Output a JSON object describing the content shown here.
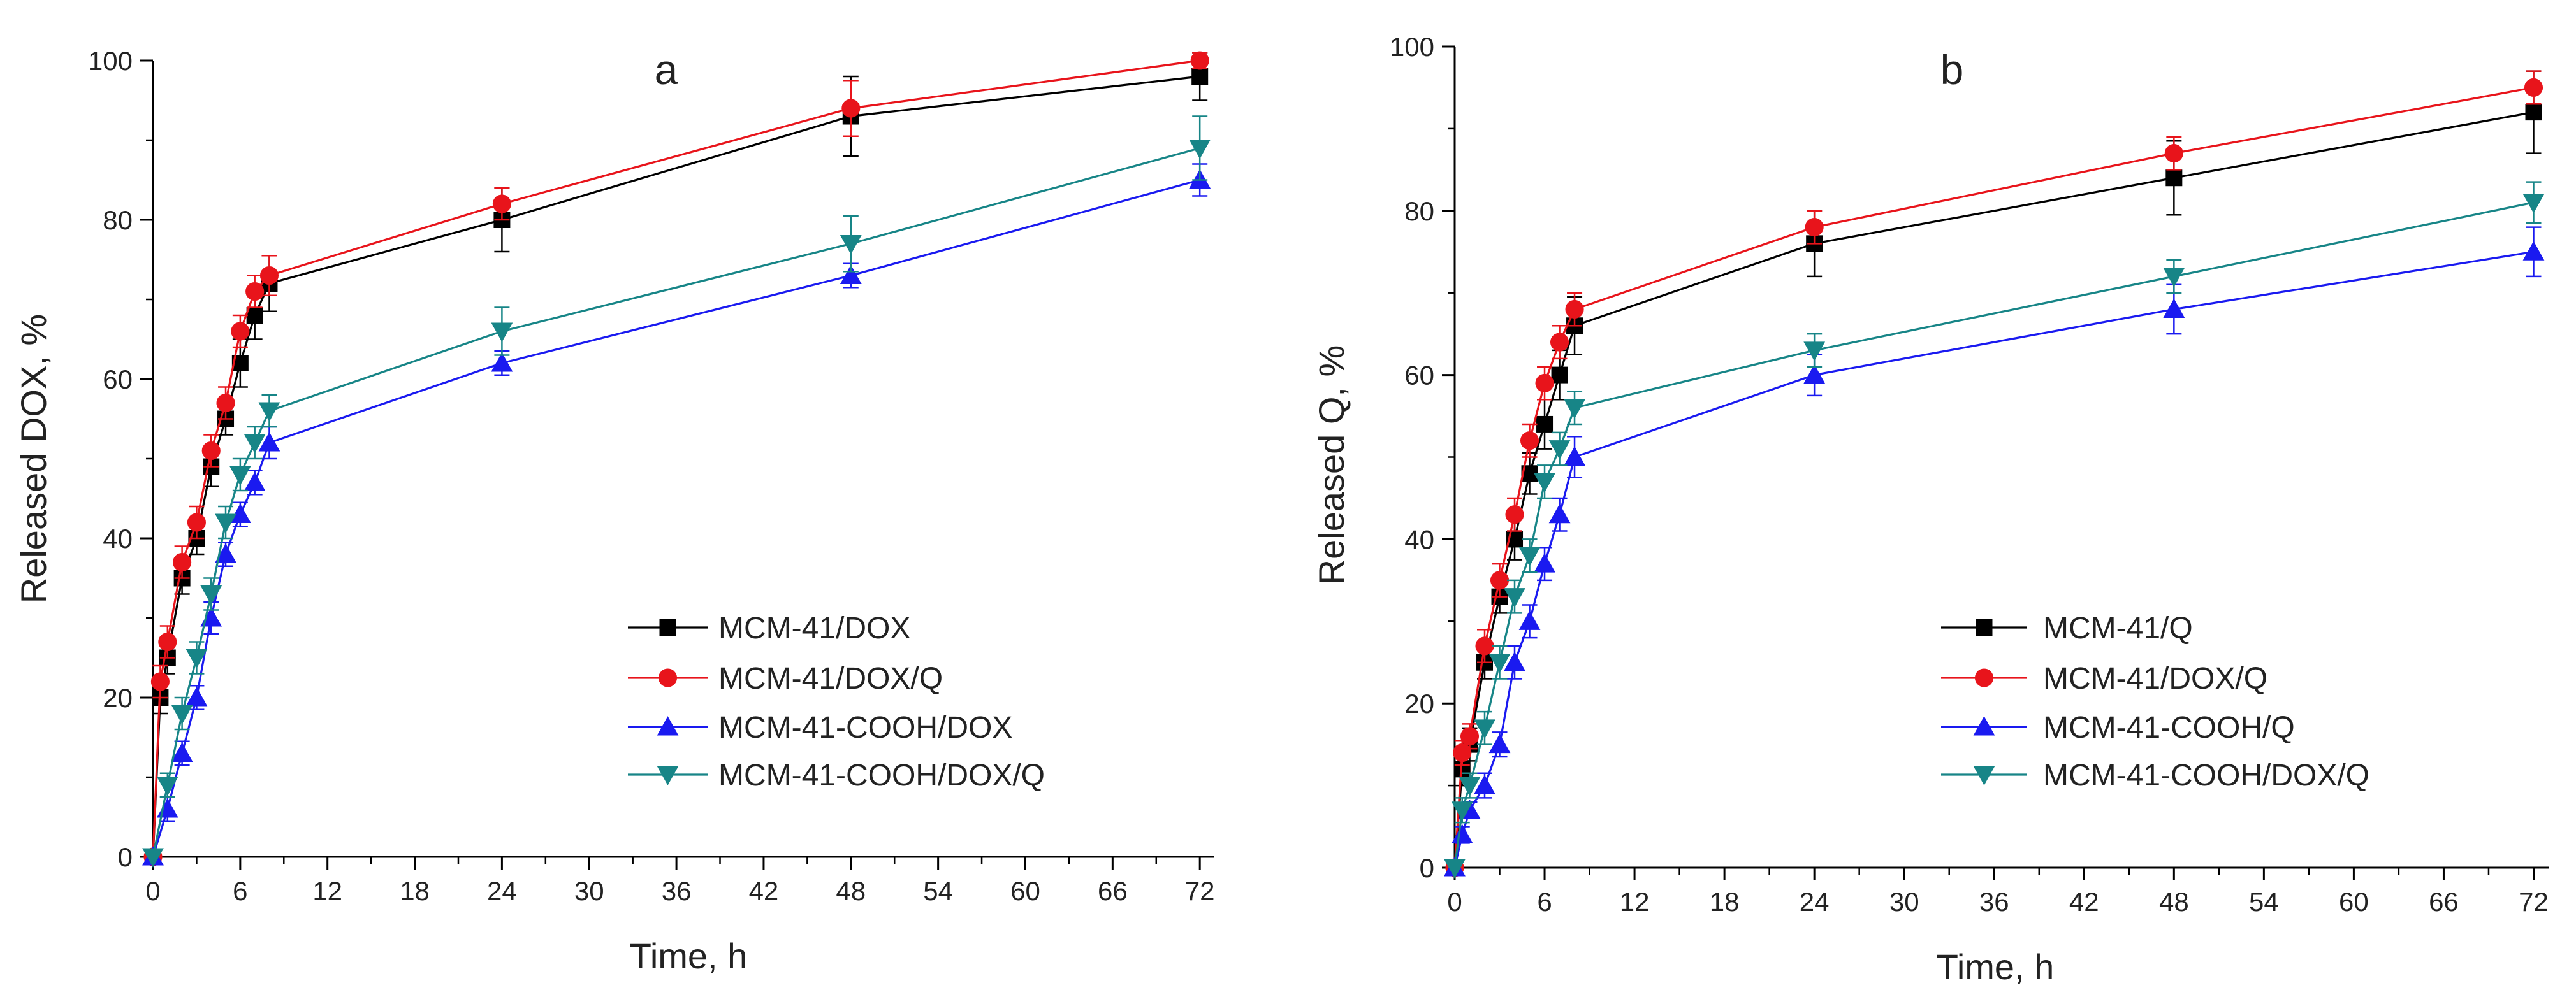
{
  "chart_data": [
    {
      "type": "line",
      "panel_label": "a",
      "xlabel": "Time, h",
      "ylabel": "Released DOX, %",
      "xlim": [
        0,
        73
      ],
      "ylim": [
        0,
        100
      ],
      "xticks": [
        "0",
        "6",
        "12",
        "18",
        "24",
        "30",
        "36",
        "42",
        "48",
        "54",
        "60",
        "66",
        "72"
      ],
      "yticks": [
        "0",
        "20",
        "40",
        "60",
        "80",
        "100"
      ],
      "legend": "bottom-right",
      "series": [
        {
          "name": "MCM-41/DOX",
          "color": "#000000",
          "marker": "square",
          "x": [
            0,
            0.5,
            1,
            2,
            3,
            4,
            5,
            6,
            7,
            8,
            24,
            48,
            72
          ],
          "y": [
            0,
            20,
            25,
            35,
            40,
            49,
            55,
            62,
            68,
            72,
            80,
            93,
            98
          ],
          "err": [
            0,
            2,
            2,
            2,
            2,
            2.5,
            2,
            3,
            3,
            3.5,
            4,
            5,
            3
          ]
        },
        {
          "name": "MCM-41/DOX/Q",
          "color": "#e8141b",
          "marker": "circle",
          "x": [
            0,
            0.5,
            1,
            2,
            3,
            4,
            5,
            6,
            7,
            8,
            24,
            48,
            72
          ],
          "y": [
            0,
            22,
            27,
            37,
            42,
            51,
            57,
            66,
            71,
            73,
            82,
            94,
            100
          ],
          "err": [
            0,
            2,
            2,
            2,
            2,
            2,
            2,
            2,
            2,
            2.5,
            2,
            3.5,
            1
          ]
        },
        {
          "name": "MCM-41-COOH/DOX",
          "color": "#1a1af0",
          "marker": "triangle-up",
          "x": [
            0,
            1,
            2,
            3,
            4,
            5,
            6,
            7,
            8,
            24,
            48,
            72
          ],
          "y": [
            0,
            6,
            13,
            20,
            30,
            38,
            43,
            47,
            52,
            62,
            73,
            85
          ],
          "err": [
            0,
            1.5,
            1.5,
            1.5,
            2,
            1.5,
            1.5,
            1.5,
            2,
            1.5,
            1.5,
            2
          ]
        },
        {
          "name": "MCM-41-COOH/DOX/Q",
          "color": "#178587",
          "marker": "triangle-down",
          "x": [
            0,
            1,
            2,
            3,
            4,
            5,
            6,
            7,
            8,
            24,
            48,
            72
          ],
          "y": [
            0,
            9,
            18,
            25,
            33,
            42,
            48,
            52,
            56,
            66,
            77,
            89
          ],
          "err": [
            0,
            1.5,
            2,
            2,
            2,
            2,
            2,
            2,
            2,
            3,
            3.5,
            4
          ]
        }
      ]
    },
    {
      "type": "line",
      "panel_label": "b",
      "xlabel": "Time, h",
      "ylabel": "Released Q, %",
      "xlim": [
        0,
        73
      ],
      "ylim": [
        0,
        100
      ],
      "xticks": [
        "0",
        "6",
        "12",
        "18",
        "24",
        "30",
        "36",
        "42",
        "48",
        "54",
        "60",
        "66",
        "72"
      ],
      "yticks": [
        "0",
        "20",
        "40",
        "60",
        "80",
        "100"
      ],
      "legend": "bottom-right",
      "series": [
        {
          "name": "MCM-41/Q",
          "color": "#000000",
          "marker": "square",
          "x": [
            0,
            0.5,
            1,
            2,
            3,
            4,
            5,
            6,
            7,
            8,
            24,
            48,
            72
          ],
          "y": [
            0,
            12,
            15,
            25,
            33,
            40,
            48,
            54,
            60,
            66,
            76,
            84,
            92
          ],
          "err": [
            0,
            2,
            2,
            2,
            2,
            2.5,
            2.5,
            3,
            3,
            3.5,
            4,
            4.5,
            5
          ]
        },
        {
          "name": "MCM-41/DOX/Q",
          "color": "#e8141b",
          "marker": "circle",
          "x": [
            0,
            0.5,
            1,
            2,
            3,
            4,
            5,
            6,
            7,
            8,
            24,
            48,
            72
          ],
          "y": [
            0,
            14,
            16,
            27,
            35,
            43,
            52,
            59,
            64,
            68,
            78,
            87,
            95
          ],
          "err": [
            0,
            1.5,
            1.5,
            2,
            2,
            2,
            2,
            2,
            2,
            2,
            2,
            2,
            2
          ]
        },
        {
          "name": "MCM-41-COOH/Q",
          "color": "#1a1af0",
          "marker": "triangle-up",
          "x": [
            0,
            0.5,
            1,
            2,
            3,
            4,
            5,
            6,
            7,
            8,
            24,
            48,
            72
          ],
          "y": [
            0,
            4,
            7,
            10,
            15,
            25,
            30,
            37,
            43,
            50,
            60,
            68,
            75
          ],
          "err": [
            0,
            1,
            1,
            1.5,
            1.5,
            2,
            2,
            2,
            2,
            2.5,
            2.5,
            3,
            3
          ]
        },
        {
          "name": "MCM-41-COOH/DOX/Q",
          "color": "#178587",
          "marker": "triangle-down",
          "x": [
            0,
            0.5,
            1,
            2,
            3,
            4,
            5,
            6,
            7,
            8,
            24,
            48,
            72
          ],
          "y": [
            0,
            7,
            10,
            17,
            25,
            33,
            38,
            47,
            51,
            56,
            63,
            72,
            81
          ],
          "err": [
            0,
            1.5,
            1.5,
            2,
            2,
            2,
            2,
            2,
            2,
            2,
            2,
            2,
            2.5
          ]
        }
      ]
    }
  ]
}
